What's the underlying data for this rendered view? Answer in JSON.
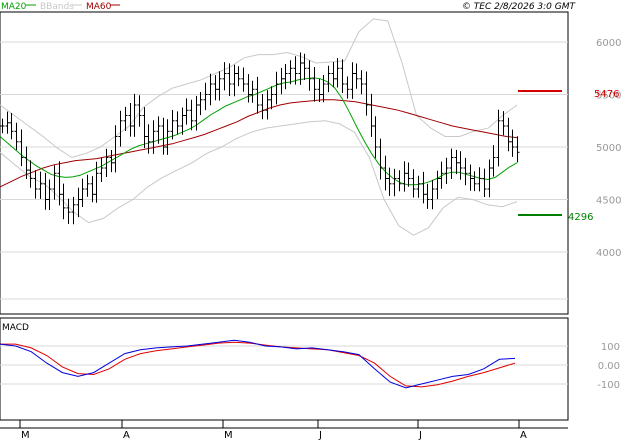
{
  "header": {
    "legend": [
      {
        "label": "MA20",
        "color": "#00a000"
      },
      {
        "label": "BBands",
        "color": "#c8c8c8"
      },
      {
        "label": "MA60",
        "color": "#a00000"
      }
    ],
    "copyright": "© TEC 2/8/2026 3:0 GMT"
  },
  "levels": {
    "resistance": {
      "label": "5476",
      "value": 5476,
      "color": "#d40000"
    },
    "support": {
      "label": "4296",
      "value": 4296,
      "color": "#008000"
    }
  },
  "chart_data": [
    {
      "type": "line",
      "name": "price",
      "ylim": [
        3500,
        6500
      ],
      "y_ticks": [
        {
          "label": "6000",
          "value": 6000
        },
        {
          "label": "5500",
          "value": 5500
        },
        {
          "label": "5000",
          "value": 5000
        },
        {
          "label": "4500",
          "value": 4500
        },
        {
          "label": "4000",
          "value": 4000
        }
      ],
      "x_ticks": [
        "M",
        "A",
        "M",
        "J",
        "J",
        "A"
      ],
      "bars": [
        5200,
        5230,
        5150,
        5050,
        4900,
        4780,
        4700,
        4600,
        4650,
        4500,
        4600,
        4750,
        4550,
        4420,
        4380,
        4450,
        4500,
        4600,
        4650,
        4550,
        4750,
        4800,
        4900,
        4850,
        5100,
        5250,
        5300,
        5200,
        5400,
        5300,
        5100,
        5050,
        5150,
        5200,
        5000,
        5150,
        5250,
        5200,
        5300,
        5350,
        5250,
        5400,
        5450,
        5500,
        5600,
        5550,
        5650,
        5700,
        5600,
        5700,
        5650,
        5600,
        5500,
        5550,
        5400,
        5350,
        5450,
        5500,
        5600,
        5650,
        5700,
        5750,
        5700,
        5800,
        5750,
        5650,
        5550,
        5500,
        5600,
        5700,
        5650,
        5750,
        5600,
        5550,
        5700,
        5650,
        5600,
        5400,
        5200,
        5000,
        4800,
        4700,
        4650,
        4700,
        4650,
        4750,
        4700,
        4600,
        4650,
        4550,
        4500,
        4600,
        4700,
        4750,
        4800,
        4900,
        4850,
        4800,
        4750,
        4700,
        4650,
        4700,
        4600,
        4800,
        4900,
        5250,
        5200,
        5050,
        5000,
        4950
      ],
      "ma20": [
        5100,
        5040,
        4980,
        4920,
        4870,
        4820,
        4780,
        4740,
        4720,
        4710,
        4715,
        4730,
        4760,
        4790,
        4820,
        4860,
        4900,
        4940,
        4980,
        5010,
        5030,
        5050,
        5070,
        5090,
        5110,
        5140,
        5170,
        5210,
        5260,
        5310,
        5350,
        5390,
        5420,
        5450,
        5480,
        5500,
        5530,
        5560,
        5590,
        5610,
        5620,
        5640,
        5650,
        5660,
        5650,
        5620,
        5560,
        5460,
        5330,
        5190,
        5060,
        4940,
        4840,
        4760,
        4700,
        4660,
        4640,
        4640,
        4650,
        4670,
        4700,
        4740,
        4760,
        4760,
        4740,
        4720,
        4700,
        4690,
        4710,
        4760,
        4810,
        4850
      ],
      "ma60": [
        4620,
        4670,
        4720,
        4760,
        4800,
        4830,
        4850,
        4870,
        4880,
        4890,
        4910,
        4930,
        4950,
        4970,
        4990,
        5010,
        5030,
        5060,
        5090,
        5120,
        5160,
        5200,
        5240,
        5290,
        5330,
        5370,
        5400,
        5420,
        5430,
        5440,
        5450,
        5450,
        5440,
        5430,
        5410,
        5390,
        5370,
        5350,
        5320,
        5290,
        5260,
        5230,
        5200,
        5180,
        5160,
        5140,
        5120,
        5100,
        5090
      ],
      "bb_upper": [
        5400,
        5300,
        5200,
        5100,
        4990,
        4900,
        4940,
        5000,
        5100,
        5200,
        5380,
        5480,
        5560,
        5600,
        5640,
        5700,
        5760,
        5850,
        5880,
        5880,
        5900,
        5860,
        5800,
        5810,
        5820,
        6100,
        6220,
        6200,
        5800,
        5300,
        5180,
        5100,
        5100,
        5150,
        5180,
        5300,
        5400
      ],
      "bb_lower": [
        4950,
        4830,
        4720,
        4650,
        4520,
        4380,
        4280,
        4320,
        4420,
        4500,
        4620,
        4710,
        4780,
        4850,
        4940,
        5000,
        5080,
        5140,
        5180,
        5200,
        5220,
        5240,
        5250,
        5220,
        5140,
        4900,
        4500,
        4250,
        4160,
        4230,
        4420,
        4520,
        4500,
        4450,
        4430,
        4480
      ]
    },
    {
      "type": "line",
      "name": "MACD",
      "ylim": [
        -150,
        170
      ],
      "y_ticks": [
        {
          "label": "100",
          "value": 100
        },
        {
          "label": "0.00",
          "value": 0
        },
        {
          "label": "-100",
          "value": -100
        }
      ],
      "series": [
        {
          "name": "MACD",
          "color": "#0000e0",
          "values": [
            110,
            100,
            70,
            10,
            -40,
            -60,
            -40,
            10,
            60,
            80,
            90,
            95,
            100,
            110,
            120,
            130,
            120,
            100,
            95,
            85,
            90,
            80,
            70,
            55,
            -20,
            -90,
            -120,
            -100,
            -80,
            -60,
            -50,
            -20,
            30,
            35
          ]
        },
        {
          "name": "Signal",
          "color": "#e00000",
          "values": [
            110,
            110,
            90,
            50,
            -10,
            -45,
            -50,
            -20,
            30,
            60,
            75,
            85,
            95,
            105,
            115,
            120,
            115,
            105,
            95,
            90,
            85,
            80,
            65,
            50,
            10,
            -60,
            -110,
            -115,
            -105,
            -85,
            -60,
            -40,
            -15,
            10
          ]
        }
      ]
    }
  ]
}
